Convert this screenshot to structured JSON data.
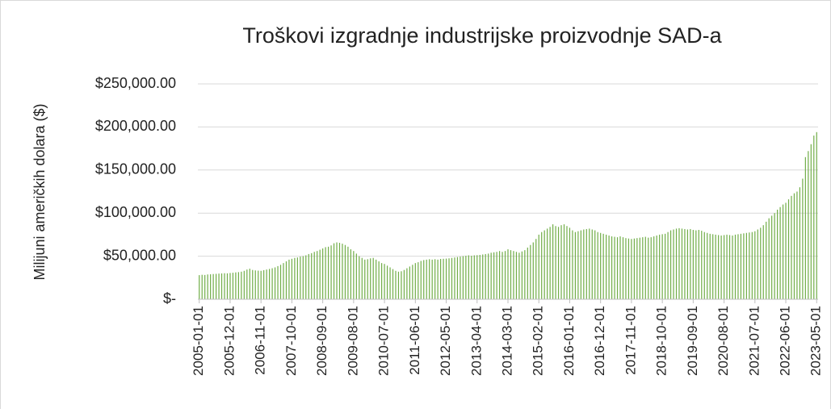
{
  "chart_data": {
    "type": "bar",
    "title": "Troškovi izgradnje industrijske proizvodnje SAD-a",
    "y_label": "Milijuni američkih dolara ($)",
    "color": "#70ad47",
    "grid": true,
    "ylim": [
      0,
      250000
    ],
    "yticks": [
      {
        "value": 0,
        "label": "$-"
      },
      {
        "value": 50000,
        "label": "$50,000.00"
      },
      {
        "value": 100000,
        "label": "$100,000.00"
      },
      {
        "value": 150000,
        "label": "$150,000.00"
      },
      {
        "value": 200000,
        "label": "$200,000.00"
      },
      {
        "value": 250000,
        "label": "$250,000.00"
      }
    ],
    "categories": [
      "2005-01-01",
      null,
      null,
      null,
      null,
      null,
      null,
      null,
      null,
      null,
      null,
      "2005-12-01",
      null,
      null,
      null,
      null,
      null,
      null,
      null,
      null,
      null,
      null,
      "2006-11-01",
      null,
      null,
      null,
      null,
      null,
      null,
      null,
      null,
      null,
      null,
      "2007-10-01",
      null,
      null,
      null,
      null,
      null,
      null,
      null,
      null,
      null,
      null,
      "2008-09-01",
      null,
      null,
      null,
      null,
      null,
      null,
      null,
      null,
      null,
      null,
      "2009-08-01",
      null,
      null,
      null,
      null,
      null,
      null,
      null,
      null,
      null,
      null,
      "2010-07-01",
      null,
      null,
      null,
      null,
      null,
      null,
      null,
      null,
      null,
      null,
      "2011-06-01",
      null,
      null,
      null,
      null,
      null,
      null,
      null,
      null,
      null,
      null,
      "2012-05-01",
      null,
      null,
      null,
      null,
      null,
      null,
      null,
      null,
      null,
      null,
      "2013-04-01",
      null,
      null,
      null,
      null,
      null,
      null,
      null,
      null,
      null,
      null,
      "2014-03-01",
      null,
      null,
      null,
      null,
      null,
      null,
      null,
      null,
      null,
      null,
      "2015-02-01",
      null,
      null,
      null,
      null,
      null,
      null,
      null,
      null,
      null,
      null,
      "2016-01-01",
      null,
      null,
      null,
      null,
      null,
      null,
      null,
      null,
      null,
      null,
      "2016-12-01",
      null,
      null,
      null,
      null,
      null,
      null,
      null,
      null,
      null,
      null,
      "2017-11-01",
      null,
      null,
      null,
      null,
      null,
      null,
      null,
      null,
      null,
      null,
      "2018-10-01",
      null,
      null,
      null,
      null,
      null,
      null,
      null,
      null,
      null,
      null,
      "2019-09-01",
      null,
      null,
      null,
      null,
      null,
      null,
      null,
      null,
      null,
      null,
      "2020-08-01",
      null,
      null,
      null,
      null,
      null,
      null,
      null,
      null,
      null,
      null,
      "2021-07-01",
      null,
      null,
      null,
      null,
      null,
      null,
      null,
      null,
      null,
      null,
      "2022-06-01",
      null,
      null,
      null,
      null,
      null,
      null,
      null,
      null,
      null,
      null,
      "2023-05-01"
    ],
    "values": [
      28000,
      28400,
      28200,
      28800,
      29000,
      29300,
      29500,
      29800,
      30000,
      30200,
      30100,
      30500,
      30800,
      31200,
      31500,
      32000,
      33000,
      34500,
      35500,
      34000,
      33500,
      33200,
      33000,
      33800,
      34500,
      35200,
      36000,
      37000,
      38500,
      40000,
      42000,
      44000,
      46000,
      47000,
      48000,
      48500,
      49500,
      50000,
      51000,
      52500,
      53500,
      55000,
      56000,
      57500,
      59000,
      60500,
      61000,
      62500,
      65000,
      66000,
      65500,
      64500,
      63000,
      61000,
      58000,
      56000,
      53000,
      50000,
      48000,
      46000,
      46500,
      47500,
      48000,
      46000,
      44000,
      42000,
      41000,
      39000,
      37000,
      35000,
      33000,
      32000,
      32500,
      34000,
      36000,
      38000,
      40000,
      42000,
      43000,
      44500,
      45500,
      46000,
      46500,
      46000,
      46500,
      46000,
      46800,
      47000,
      47200,
      47500,
      48000,
      48500,
      49000,
      49500,
      50000,
      50500,
      51000,
      50500,
      51000,
      51200,
      51500,
      52000,
      52500,
      53000,
      54000,
      54500,
      55000,
      56000,
      55000,
      56000,
      58000,
      57000,
      56000,
      55000,
      54000,
      55500,
      57000,
      60000,
      63000,
      66000,
      70000,
      75000,
      78000,
      80000,
      82000,
      84000,
      87000,
      85000,
      84000,
      86000,
      87000,
      85000,
      83000,
      80000,
      78000,
      79000,
      80000,
      81000,
      81500,
      82000,
      81000,
      80000,
      78000,
      77000,
      76000,
      75000,
      74000,
      73000,
      72500,
      72000,
      73000,
      72000,
      71000,
      70500,
      70000,
      70500,
      71000,
      71500,
      72000,
      72500,
      71500,
      72000,
      73000,
      74000,
      75000,
      75500,
      76000,
      78000,
      80000,
      81000,
      82000,
      82500,
      82000,
      81500,
      81000,
      81500,
      80500,
      80000,
      80500,
      79500,
      78000,
      77000,
      76000,
      75500,
      75000,
      74500,
      74000,
      74500,
      75000,
      74500,
      74000,
      75000,
      75500,
      76000,
      76500,
      77000,
      77500,
      78000,
      79000,
      81000,
      83000,
      86000,
      90000,
      94000,
      97000,
      100000,
      104000,
      107000,
      110000,
      112000,
      116000,
      120000,
      123000,
      125000,
      130000,
      140000,
      165000,
      172000,
      180000,
      190000,
      194000
    ]
  }
}
